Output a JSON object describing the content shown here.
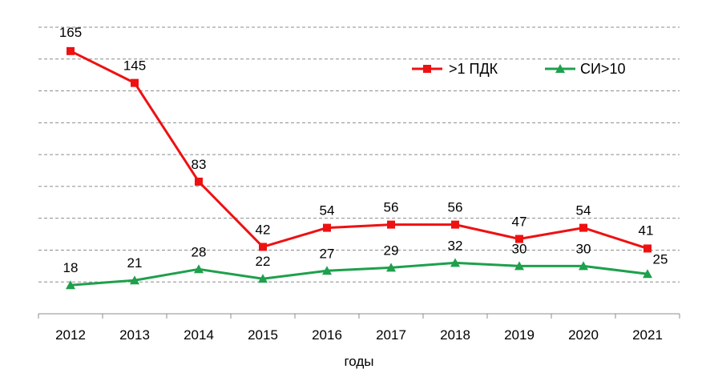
{
  "chart_data": {
    "type": "line",
    "categories": [
      "2012",
      "2013",
      "2014",
      "2015",
      "2016",
      "2017",
      "2018",
      "2019",
      "2020",
      "2021"
    ],
    "series": [
      {
        "name": ">1 ПДК",
        "values": [
          165,
          145,
          83,
          42,
          54,
          56,
          56,
          47,
          54,
          41
        ],
        "color": "#ee1111",
        "marker": "square"
      },
      {
        "name": "СИ>10",
        "values": [
          18,
          21,
          28,
          22,
          27,
          29,
          32,
          30,
          30,
          25
        ],
        "color": "#1ea04c",
        "marker": "triangle"
      }
    ],
    "xlabel": "годы",
    "ylabel": "",
    "ylim": [
      0,
      180
    ],
    "grid": "horizontal dashed",
    "legend": "top-right"
  }
}
